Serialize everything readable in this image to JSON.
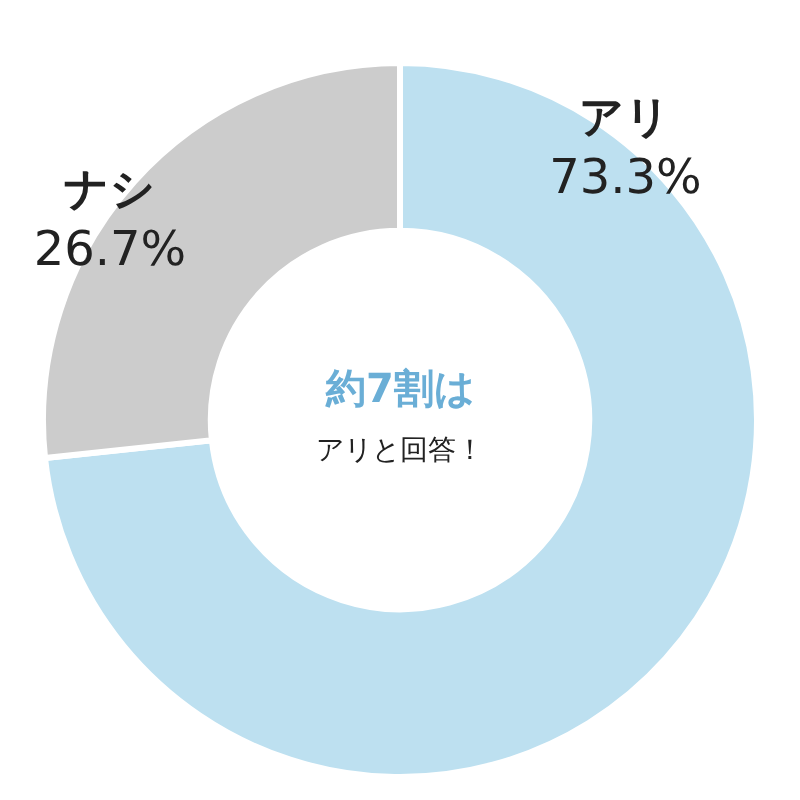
{
  "chart_data": {
    "type": "donut",
    "categories": [
      "アリ",
      "ナシ"
    ],
    "values": [
      73.3,
      26.7
    ],
    "colors": [
      "#bde0f0",
      "#cccccc"
    ],
    "value_labels": [
      "73.3%",
      "26.7%"
    ],
    "annotations": [
      "約7割は",
      "アリと回答！"
    ],
    "legend": false
  }
}
